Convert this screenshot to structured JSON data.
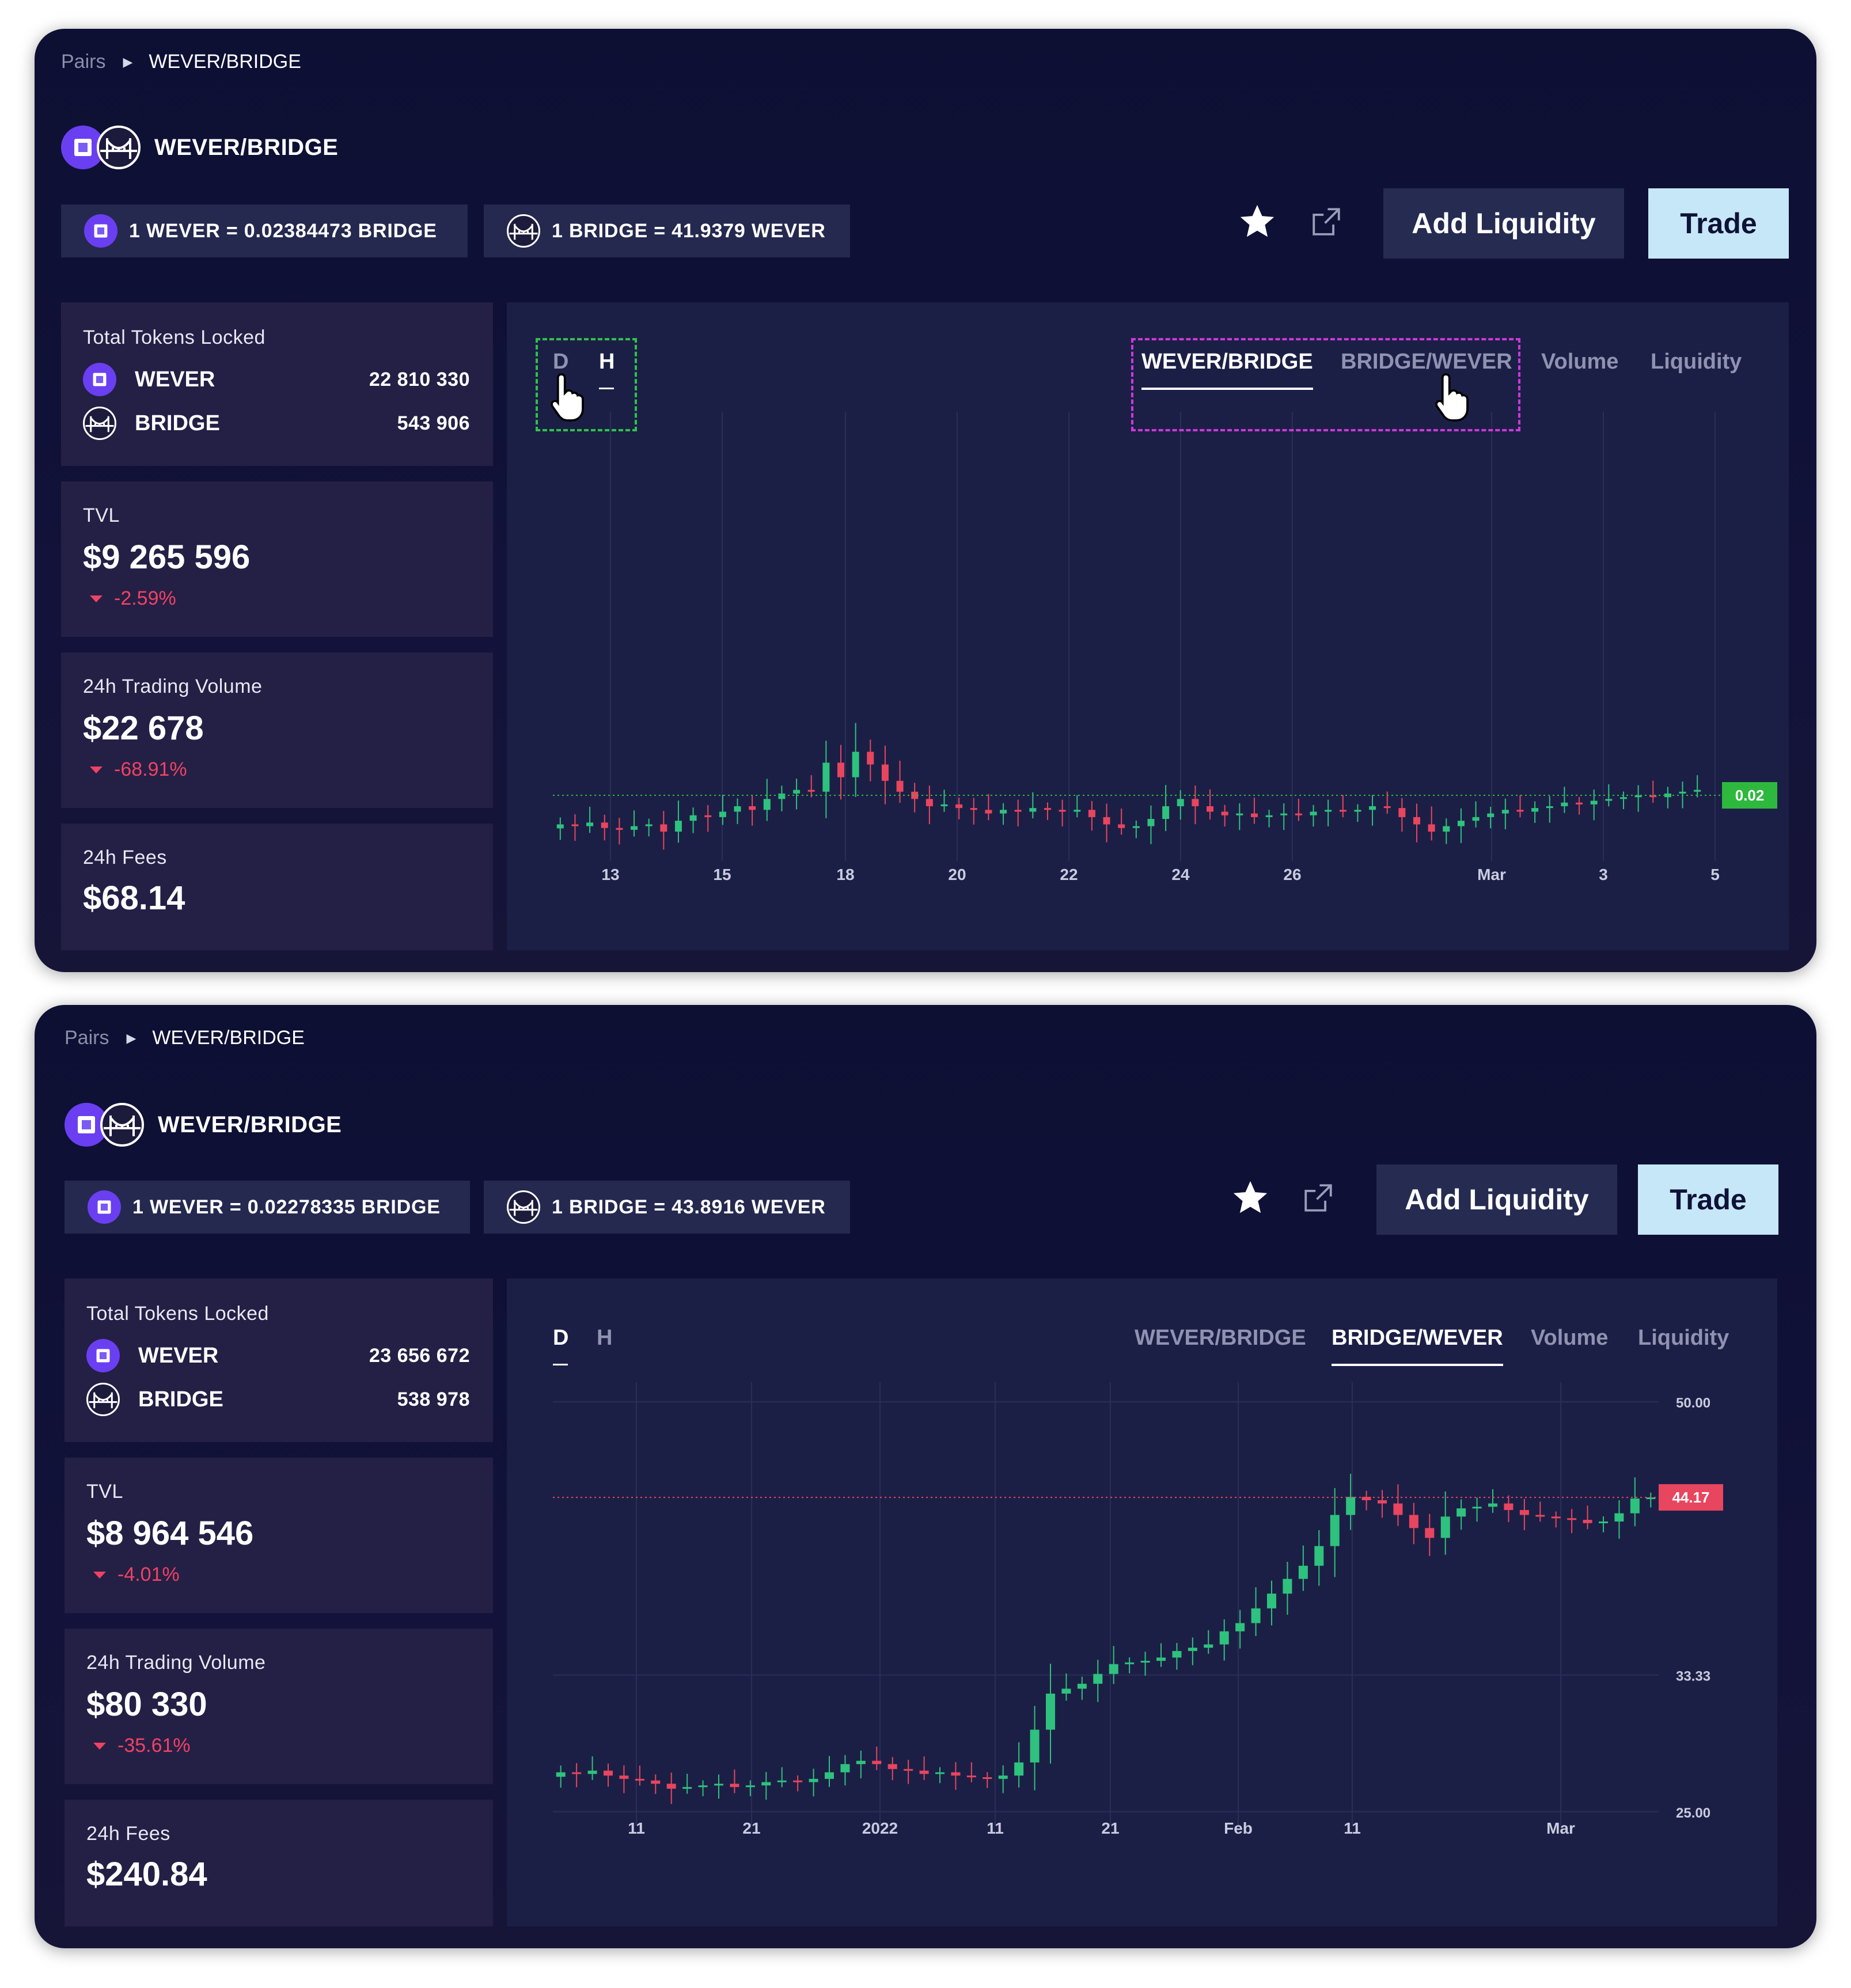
{
  "screens": [
    {
      "breadcrumb": {
        "root": "Pairs",
        "current": "WEVER/BRIDGE"
      },
      "pair_title": "WEVER/BRIDGE",
      "rates": {
        "wever_to_bridge": "1 WEVER = 0.02384473 BRIDGE",
        "bridge_to_wever": "1 BRIDGE = 41.9379 WEVER"
      },
      "buttons": {
        "add_liquidity": "Add Liquidity",
        "trade": "Trade"
      },
      "total_tokens_locked": {
        "label": "Total Tokens Locked",
        "tokens": [
          {
            "name": "WEVER",
            "amount": "22 810 330"
          },
          {
            "name": "BRIDGE",
            "amount": "543 906"
          }
        ]
      },
      "tvl": {
        "label": "TVL",
        "value": "$9 265 596",
        "change": "-2.59%"
      },
      "volume_24h": {
        "label": "24h Trading Volume",
        "value": "$22 678",
        "change": "-68.91%"
      },
      "fees_24h": {
        "label": "24h Fees",
        "value": "$68.14"
      },
      "timeframes": {
        "d": "D",
        "h": "H",
        "active": "H"
      },
      "chart_tabs": {
        "tabs": [
          "WEVER/BRIDGE",
          "BRIDGE/WEVER",
          "Volume",
          "Liquidity"
        ],
        "active": "WEVER/BRIDGE"
      },
      "colors": {
        "up": "#2ec27e",
        "down": "#e8455f",
        "accent_green": "#2eb83e"
      }
    },
    {
      "breadcrumb": {
        "root": "Pairs",
        "current": "WEVER/BRIDGE"
      },
      "pair_title": "WEVER/BRIDGE",
      "rates": {
        "wever_to_bridge": "1 WEVER = 0.02278335 BRIDGE",
        "bridge_to_wever": "1 BRIDGE = 43.8916 WEVER"
      },
      "buttons": {
        "add_liquidity": "Add Liquidity",
        "trade": "Trade"
      },
      "total_tokens_locked": {
        "label": "Total Tokens Locked",
        "tokens": [
          {
            "name": "WEVER",
            "amount": "23 656 672"
          },
          {
            "name": "BRIDGE",
            "amount": "538 978"
          }
        ]
      },
      "tvl": {
        "label": "TVL",
        "value": "$8 964 546",
        "change": "-4.01%"
      },
      "volume_24h": {
        "label": "24h Trading Volume",
        "value": "$80 330",
        "change": "-35.61%"
      },
      "fees_24h": {
        "label": "24h Fees",
        "value": "$240.84"
      },
      "timeframes": {
        "d": "D",
        "h": "H",
        "active": "D"
      },
      "chart_tabs": {
        "tabs": [
          "WEVER/BRIDGE",
          "BRIDGE/WEVER",
          "Volume",
          "Liquidity"
        ],
        "active": "BRIDGE/WEVER"
      },
      "colors": {
        "up": "#2ec27e",
        "down": "#e8455f",
        "accent_red": "#e8455f"
      }
    }
  ],
  "chart_data": [
    {
      "type": "candlestick",
      "title": "",
      "x_ticks": [
        "13",
        "15",
        "18",
        "20",
        "22",
        "24",
        "26",
        "Mar",
        "3",
        "5"
      ],
      "y_ticks": [],
      "current_price_label": "0.02",
      "current_price": 0.0238,
      "ylim": [
        0.0205,
        0.0405
      ],
      "series": [
        {
          "values": [
            0.0222,
            0.0221,
            0.0223,
            0.022,
            0.0219,
            0.0221,
            0.0222,
            0.0218,
            0.0224,
            0.0227,
            0.0226,
            0.0229,
            0.0232,
            0.023,
            0.0236,
            0.0239,
            0.0241,
            0.024,
            0.0256,
            0.0248,
            0.0262,
            0.0255,
            0.0246,
            0.024,
            0.0236,
            0.0232,
            0.0233,
            0.0231,
            0.023,
            0.0228,
            0.023,
            0.0229,
            0.0231,
            0.023,
            0.0229,
            0.023,
            0.0226,
            0.0222,
            0.022,
            0.0221,
            0.0225,
            0.0232,
            0.0236,
            0.0232,
            0.0229,
            0.0227,
            0.0228,
            0.0226,
            0.0227,
            0.0228,
            0.0227,
            0.0229,
            0.023,
            0.0229,
            0.023,
            0.0232,
            0.0231,
            0.0226,
            0.0222,
            0.0218,
            0.0221,
            0.0224,
            0.0226,
            0.0228,
            0.023,
            0.0229,
            0.0231,
            0.0232,
            0.0234,
            0.0233,
            0.0235,
            0.0236,
            0.0237,
            0.0238,
            0.0237,
            0.0239,
            0.024,
            0.0241
          ]
        }
      ]
    },
    {
      "type": "candlestick",
      "title": "",
      "x_ticks": [
        "11",
        "21",
        "2022",
        "11",
        "21",
        "Feb",
        "11",
        "Mar"
      ],
      "y_ticks": [
        "50.00",
        "33.33",
        "25.00"
      ],
      "current_price_label": "44.17",
      "current_price": 44.17,
      "ylim": [
        24.5,
        51.2
      ],
      "series": [
        {
          "values": [
            27.4,
            27.3,
            27.5,
            27.2,
            27.0,
            26.9,
            26.7,
            26.4,
            26.5,
            26.6,
            26.7,
            26.5,
            26.6,
            26.8,
            26.9,
            26.8,
            27.0,
            27.4,
            27.9,
            28.1,
            27.9,
            27.6,
            27.5,
            27.3,
            27.4,
            27.2,
            27.1,
            27.0,
            27.2,
            28.0,
            30.0,
            32.2,
            32.5,
            32.8,
            33.4,
            34.0,
            34.1,
            34.2,
            34.4,
            34.8,
            35.0,
            35.2,
            36.0,
            36.5,
            37.4,
            38.3,
            39.2,
            40.0,
            41.2,
            43.1,
            44.2,
            44.0,
            43.8,
            43.1,
            42.3,
            41.7,
            43.0,
            43.5,
            43.6,
            43.8,
            43.4,
            43.1,
            43.0,
            42.9,
            42.8,
            42.6,
            42.7,
            43.2,
            44.1,
            44.17
          ]
        }
      ]
    }
  ]
}
